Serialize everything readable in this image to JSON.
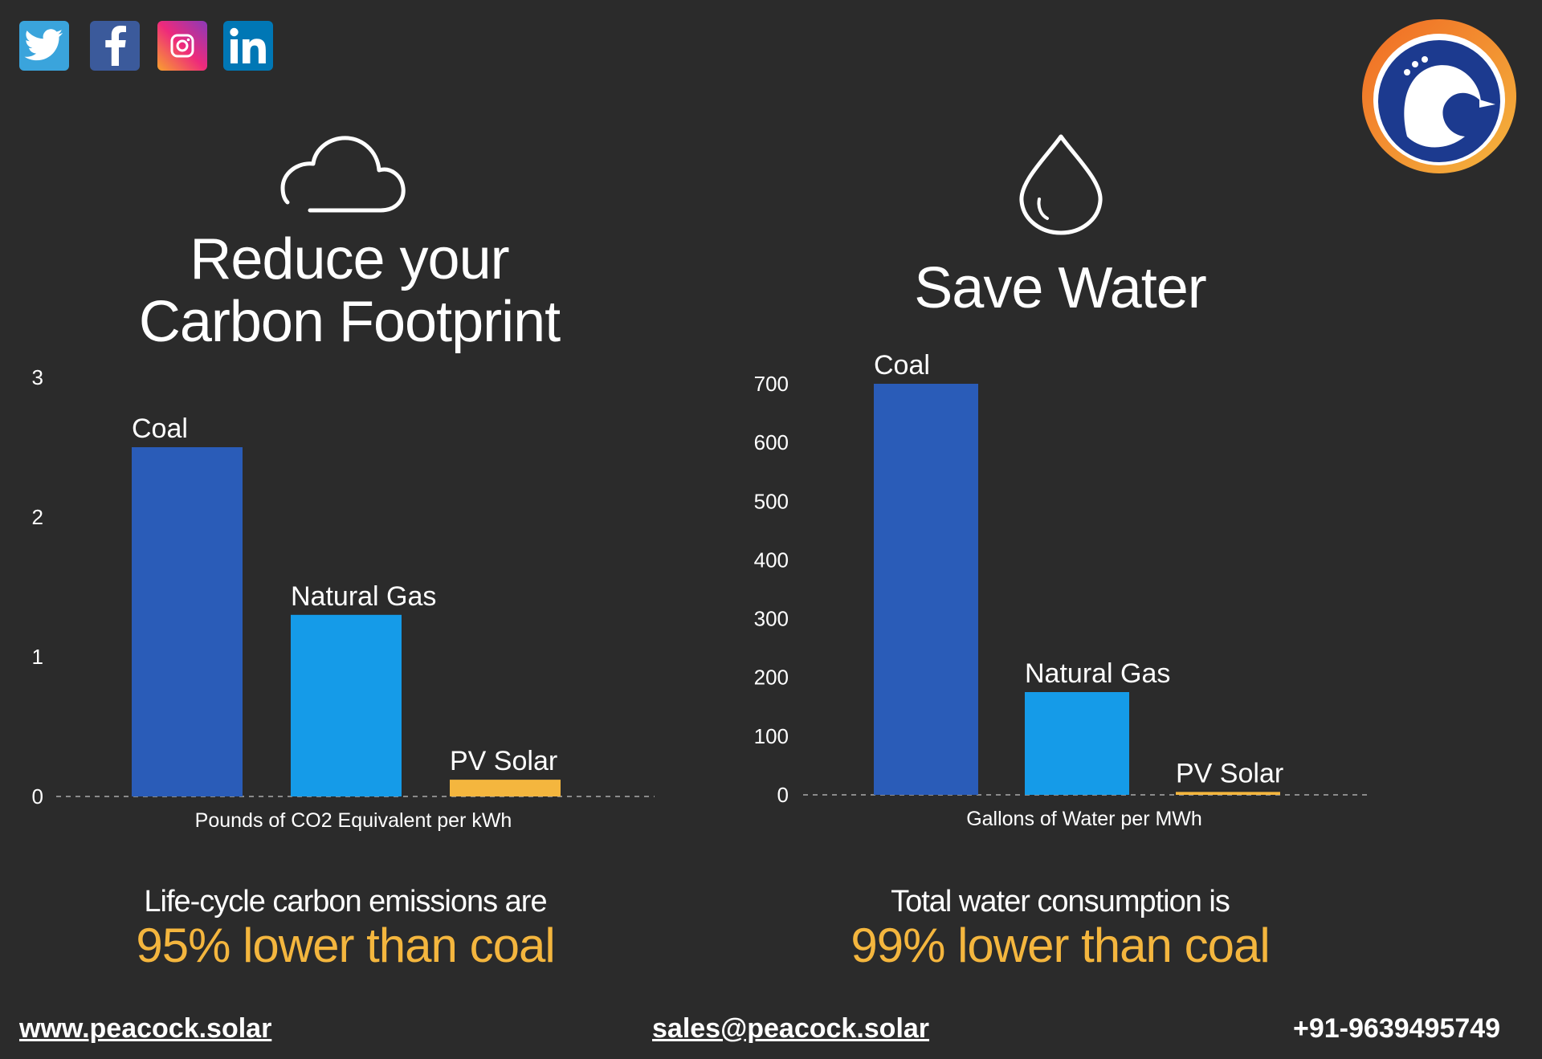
{
  "social": {
    "icons": [
      "twitter-icon",
      "facebook-icon",
      "instagram-icon",
      "linkedin-icon"
    ]
  },
  "logo": {
    "icon": "peacock-logo-icon",
    "ring_colors": [
      "#f08a24",
      "#f4b63e"
    ],
    "body_color": "#1c3a8f"
  },
  "left_panel": {
    "icon": "cloud-icon",
    "title_line1": "Reduce your",
    "title_line2": "Carbon Footprint",
    "caption_line1": "Life-cycle carbon emissions are",
    "caption_line2": "95% lower than coal"
  },
  "right_panel": {
    "icon": "water-drop-icon",
    "title": "Save Water",
    "caption_line1": "Total water consumption is",
    "caption_line2": "99% lower than coal"
  },
  "footer": {
    "website": "www.peacock.solar",
    "email": "sales@peacock.solar",
    "phone": "+91-9639495749"
  },
  "colors": {
    "coal": "#2a5cb8",
    "natural_gas": "#159be8",
    "pv_solar": "#f4b63e",
    "highlight": "#f4b63e",
    "background": "#2b2b2b"
  },
  "chart_data": [
    {
      "type": "bar",
      "title": "Reduce your Carbon Footprint",
      "categories": [
        "Coal",
        "Natural Gas",
        "PV Solar"
      ],
      "values": [
        2.5,
        1.3,
        0.12
      ],
      "xlabel": "Pounds of CO2 Equivalent per kWh",
      "ylabel": "",
      "ylim": [
        0,
        3
      ],
      "yticks": [
        0,
        1,
        2,
        3
      ],
      "grid": false,
      "legend": "none"
    },
    {
      "type": "bar",
      "title": "Save Water",
      "categories": [
        "Coal",
        "Natural Gas",
        "PV Solar"
      ],
      "values": [
        700,
        175,
        5
      ],
      "xlabel": "Gallons of Water per MWh",
      "ylabel": "",
      "ylim": [
        0,
        700
      ],
      "yticks": [
        0,
        100,
        200,
        300,
        400,
        500,
        600,
        700
      ],
      "grid": false,
      "legend": "none"
    }
  ]
}
